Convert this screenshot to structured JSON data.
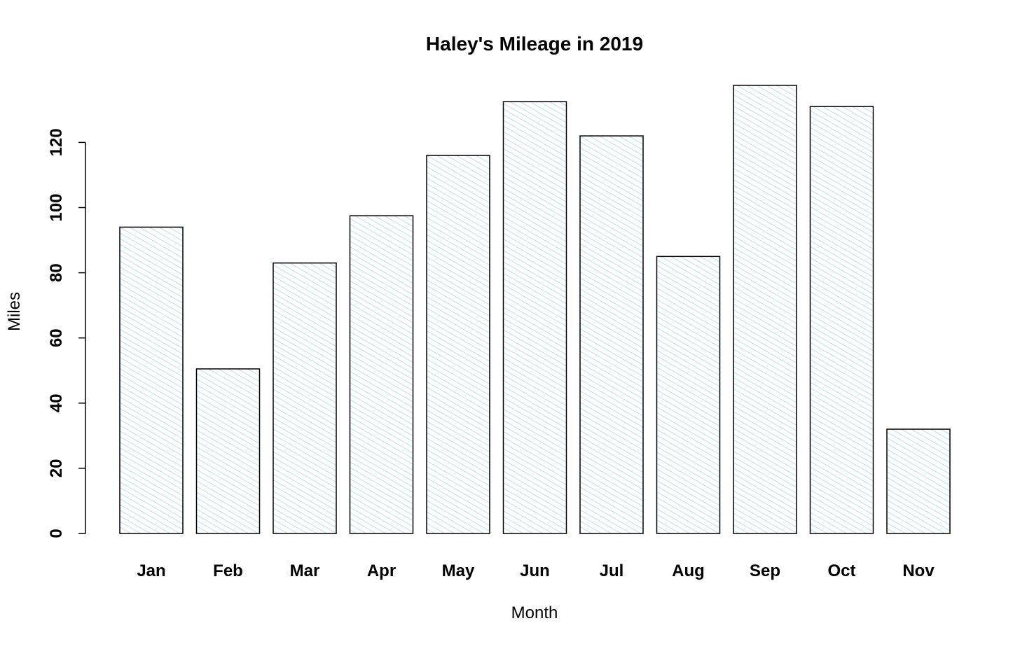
{
  "chart_data": {
    "type": "bar",
    "title": "Haley's Mileage in 2019",
    "xlabel": "Month",
    "ylabel": "Miles",
    "categories": [
      "Jan",
      "Feb",
      "Mar",
      "Apr",
      "May",
      "Jun",
      "Jul",
      "Aug",
      "Sep",
      "Oct",
      "Nov"
    ],
    "values": [
      94,
      50.5,
      83,
      97.5,
      116,
      132.5,
      122,
      85,
      137.5,
      131,
      32
    ],
    "ylim": [
      0,
      140
    ],
    "yticks": [
      0,
      20,
      40,
      60,
      80,
      100,
      120
    ],
    "grid": false,
    "legend": "none",
    "bar_fill": "#ffffff",
    "bar_hatch_color": "#add8e6",
    "bar_border_color": "#000000"
  }
}
